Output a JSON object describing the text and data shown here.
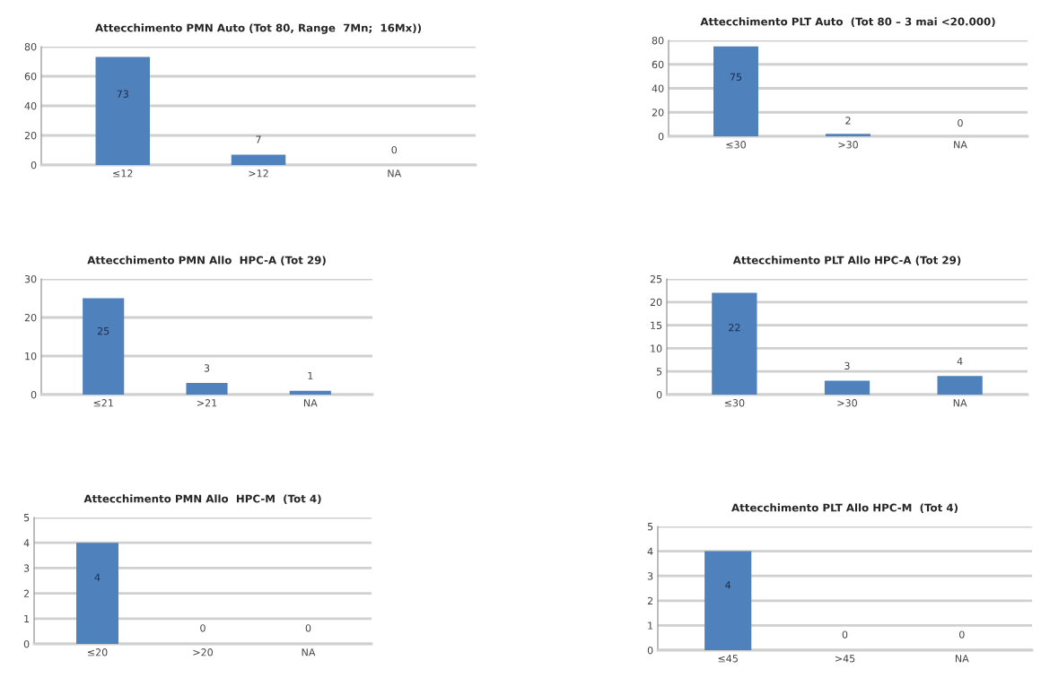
{
  "chart_data": [
    {
      "type": "bar",
      "title": "Attecchimento PMN Auto (Tot 80, Range  7Mn;  16Mx))",
      "categories": [
        "≤12",
        ">12",
        "NA"
      ],
      "values": [
        73,
        7,
        0
      ],
      "color": "#4f81bd",
      "ylim": [
        0,
        80
      ],
      "yticks": [
        0,
        20,
        40,
        60,
        80
      ],
      "grid": "y",
      "data_labels": true
    },
    {
      "type": "bar",
      "title": "Attecchimento PLT Auto  (Tot 80 – 3 mai <20.000)",
      "categories": [
        "≤30",
        ">30",
        "NA"
      ],
      "values": [
        75,
        2,
        0
      ],
      "color": "#4f81bd",
      "ylim": [
        0,
        80
      ],
      "yticks": [
        0,
        20,
        40,
        60,
        80
      ],
      "grid": "y",
      "data_labels": true
    },
    {
      "type": "bar",
      "title": "Attecchimento PMN Allo  HPC-A (Tot 29)",
      "categories": [
        "≤21",
        ">21",
        "NA"
      ],
      "values": [
        25,
        3,
        1
      ],
      "color": "#4f81bd",
      "ylim": [
        0,
        30
      ],
      "yticks": [
        0,
        10,
        20,
        30
      ],
      "grid": "y",
      "data_labels": true
    },
    {
      "type": "bar",
      "title": "Attecchimento PLT Allo HPC-A (Tot 29)",
      "categories": [
        "≤30",
        ">30",
        "NA"
      ],
      "values": [
        22,
        3,
        4
      ],
      "color": "#4f81bd",
      "ylim": [
        0,
        25
      ],
      "yticks": [
        0,
        5,
        10,
        15,
        20,
        25
      ],
      "grid": "y",
      "data_labels": true
    },
    {
      "type": "bar",
      "title": "Attecchimento PMN Allo  HPC-M  (Tot 4)",
      "categories": [
        "≤20",
        ">20",
        "NA"
      ],
      "values": [
        4,
        0,
        0
      ],
      "color": "#4f81bd",
      "ylim": [
        0,
        5
      ],
      "yticks": [
        0,
        1,
        2,
        3,
        4,
        5
      ],
      "grid": "y",
      "data_labels": true
    },
    {
      "type": "bar",
      "title": "Attecchimento PLT Allo HPC-M  (Tot 4)",
      "categories": [
        "≤45",
        ">45",
        "NA"
      ],
      "values": [
        4,
        0,
        0
      ],
      "color": "#4f81bd",
      "ylim": [
        0,
        5
      ],
      "yticks": [
        0,
        1,
        2,
        3,
        4,
        5
      ],
      "grid": "y",
      "data_labels": true
    }
  ]
}
